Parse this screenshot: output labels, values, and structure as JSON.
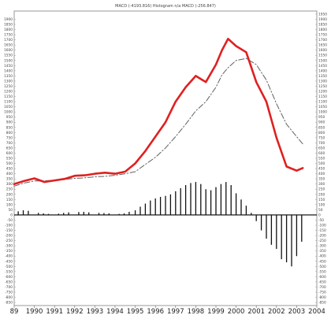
{
  "chart_data": {
    "type": "line",
    "title": "MACD (-4193.816) Histogram n/a MACD (-256.847)",
    "xlabel": "",
    "ylabel": "",
    "x": [
      1989.0,
      1989.5,
      1990.0,
      1990.5,
      1991.0,
      1991.5,
      1992.0,
      1992.5,
      1993.0,
      1993.5,
      1994.0,
      1994.5,
      1995.0,
      1995.5,
      1996.0,
      1996.5,
      1997.0,
      1997.5,
      1998.0,
      1998.5,
      1999.0,
      1999.3,
      1999.6,
      2000.0,
      2000.5,
      2001.0,
      2001.5,
      2002.0,
      2002.5,
      2003.0,
      2003.3
    ],
    "x_ticks": [
      "89",
      "1990",
      "1991",
      "1992",
      "1993",
      "1994",
      "1995",
      "1996",
      "1997",
      "1998",
      "1999",
      "2000",
      "2001",
      "2002",
      "2003",
      "2004"
    ],
    "xlim": [
      1989,
      2004
    ],
    "y_ticks_left": [
      "1900",
      "1850",
      "1800",
      "1750",
      "1700",
      "1650",
      "1600",
      "1550",
      "1500",
      "1450",
      "1400",
      "1350",
      "1300",
      "1250",
      "1200",
      "1150",
      "1100",
      "1050",
      "1000",
      "950",
      "900",
      "850",
      "800",
      "750",
      "700",
      "650",
      "600",
      "550",
      "500",
      "450",
      "400",
      "350",
      "300",
      "250",
      "200",
      "150",
      "100",
      "50",
      "0",
      "-50",
      "-100",
      "-150",
      "-200",
      "-250",
      "-300",
      "-350",
      "-400",
      "-450",
      "-500",
      "-550",
      "-600",
      "-650",
      "-700",
      "-750",
      "-800",
      "-850"
    ],
    "y_ticks_right": [
      "1950",
      "1900",
      "1850",
      "1800",
      "1750",
      "1700",
      "1650",
      "1600",
      "1550",
      "1500",
      "1450",
      "1400",
      "1350",
      "1300",
      "1250",
      "1200",
      "1150",
      "1100",
      "1050",
      "1000",
      "950",
      "900",
      "850",
      "800",
      "750",
      "700",
      "650",
      "600",
      "550",
      "500",
      "450",
      "400",
      "350",
      "300",
      "250",
      "200",
      "150",
      "100",
      "50",
      "0",
      "-50",
      "-100",
      "-150",
      "-200",
      "-250",
      "-300",
      "-350",
      "-400",
      "-450",
      "-500",
      "-550",
      "-600",
      "-650",
      "-700",
      "-750",
      "-800",
      "-850"
    ],
    "ylim": [
      -880,
      1980
    ],
    "grid": false,
    "series": [
      {
        "style": "solid",
        "color": "#e02020",
        "values": [
          300,
          330,
          355,
          320,
          335,
          350,
          380,
          385,
          400,
          410,
          400,
          420,
          500,
          620,
          760,
          900,
          1100,
          1240,
          1350,
          1290,
          1460,
          1600,
          1710,
          1640,
          1580,
          1290,
          1100,
          750,
          470,
          430,
          455
        ]
      },
      {
        "style": "dashed",
        "color": "#606060",
        "values": [
          280,
          310,
          330,
          330,
          340,
          345,
          355,
          360,
          370,
          375,
          385,
          400,
          420,
          490,
          560,
          650,
          760,
          880,
          1010,
          1100,
          1240,
          1360,
          1430,
          1500,
          1520,
          1460,
          1310,
          1080,
          880,
          760,
          690
        ]
      }
    ],
    "histogram": {
      "color": "#111111",
      "x": [
        1989.2,
        1989.45,
        1989.7,
        1990.2,
        1990.45,
        1990.7,
        1991.2,
        1991.45,
        1991.7,
        1992.2,
        1992.45,
        1992.7,
        1993.2,
        1993.45,
        1993.7,
        1994.2,
        1994.45,
        1994.7,
        1995.0,
        1995.25,
        1995.5,
        1995.75,
        1996.0,
        1996.25,
        1996.5,
        1996.75,
        1997.0,
        1997.25,
        1997.5,
        1997.75,
        1998.0,
        1998.25,
        1998.5,
        1998.75,
        1999.0,
        1999.25,
        1999.5,
        1999.75,
        2000.0,
        2000.25,
        2000.5,
        2000.75,
        2001.0,
        2001.25,
        2001.5,
        2001.75,
        2002.0,
        2002.25,
        2002.5,
        2002.75,
        2003.0,
        2003.25
      ],
      "values": [
        35,
        45,
        40,
        20,
        15,
        10,
        12,
        20,
        25,
        28,
        30,
        25,
        20,
        18,
        15,
        10,
        15,
        30,
        45,
        80,
        110,
        140,
        160,
        175,
        185,
        200,
        230,
        260,
        290,
        310,
        320,
        300,
        250,
        240,
        270,
        300,
        320,
        290,
        210,
        150,
        90,
        20,
        -60,
        -150,
        -230,
        -290,
        -330,
        -430,
        -460,
        -500,
        -400,
        -260
      ]
    }
  }
}
